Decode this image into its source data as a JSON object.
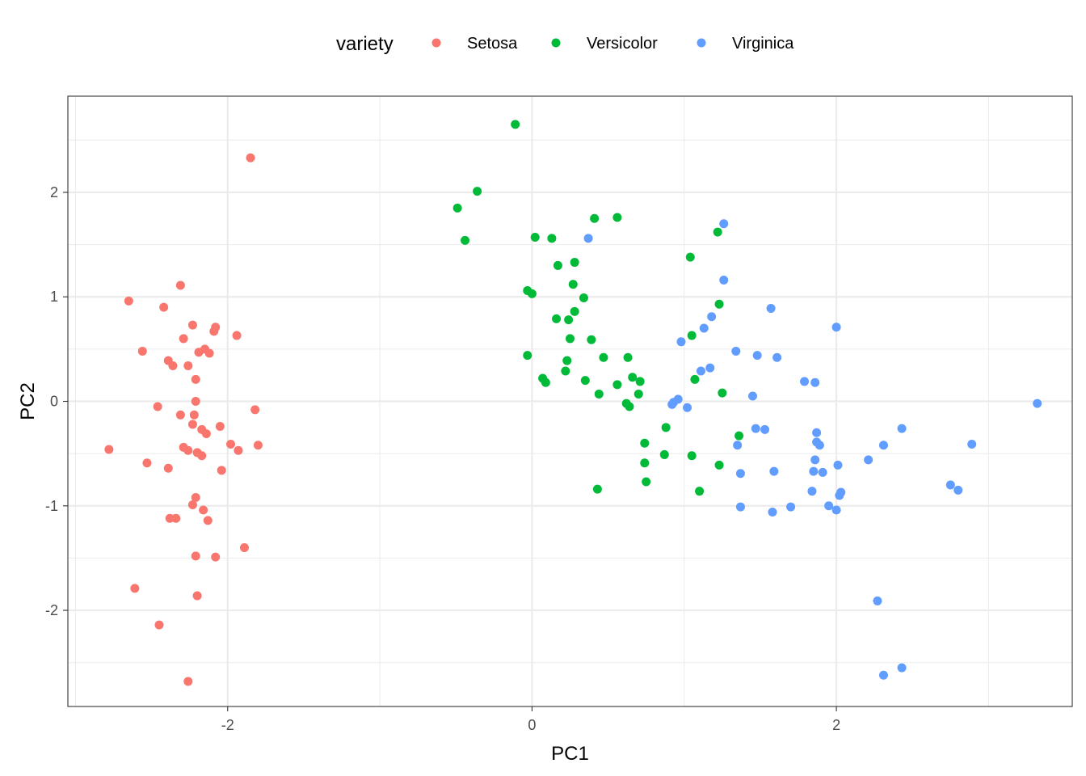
{
  "chart_data": {
    "type": "scatter",
    "xlabel": "PC1",
    "ylabel": "PC2",
    "xlim": [
      -3.05,
      3.55
    ],
    "ylim": [
      -2.92,
      2.92
    ],
    "x_ticks": [
      -2,
      0,
      2
    ],
    "y_ticks": [
      -2,
      -1,
      0,
      1,
      2
    ],
    "x_tick_labels": [
      "-2",
      "0",
      "2"
    ],
    "y_tick_labels": [
      "-2",
      "-1",
      "0",
      "1",
      "2"
    ],
    "grid": true,
    "legend": {
      "title": "variety",
      "position": "top"
    },
    "series": [
      {
        "name": "Setosa",
        "color": "#F8766D",
        "points": [
          [
            -1.85,
            2.33
          ],
          [
            -2.31,
            1.11
          ],
          [
            -2.65,
            0.96
          ],
          [
            -2.42,
            0.9
          ],
          [
            -2.23,
            0.73
          ],
          [
            -2.08,
            0.71
          ],
          [
            -2.09,
            0.67
          ],
          [
            -1.94,
            0.63
          ],
          [
            -2.29,
            0.6
          ],
          [
            -2.15,
            0.5
          ],
          [
            -2.12,
            0.46
          ],
          [
            -2.19,
            0.47
          ],
          [
            -2.56,
            0.48
          ],
          [
            -2.39,
            0.39
          ],
          [
            -2.36,
            0.34
          ],
          [
            -2.26,
            0.34
          ],
          [
            -2.21,
            0.21
          ],
          [
            -2.21,
            0.0
          ],
          [
            -2.46,
            -0.05
          ],
          [
            -1.82,
            -0.08
          ],
          [
            -2.31,
            -0.13
          ],
          [
            -2.22,
            -0.13
          ],
          [
            -2.23,
            -0.22
          ],
          [
            -2.05,
            -0.24
          ],
          [
            -2.17,
            -0.27
          ],
          [
            -2.14,
            -0.31
          ],
          [
            -1.98,
            -0.41
          ],
          [
            -1.8,
            -0.42
          ],
          [
            -2.29,
            -0.44
          ],
          [
            -2.26,
            -0.47
          ],
          [
            -1.93,
            -0.47
          ],
          [
            -2.2,
            -0.49
          ],
          [
            -2.17,
            -0.52
          ],
          [
            -2.78,
            -0.46
          ],
          [
            -2.53,
            -0.59
          ],
          [
            -2.39,
            -0.64
          ],
          [
            -2.04,
            -0.66
          ],
          [
            -2.21,
            -0.92
          ],
          [
            -2.23,
            -0.99
          ],
          [
            -2.16,
            -1.04
          ],
          [
            -2.38,
            -1.12
          ],
          [
            -2.34,
            -1.12
          ],
          [
            -2.13,
            -1.14
          ],
          [
            -1.89,
            -1.4
          ],
          [
            -2.21,
            -1.48
          ],
          [
            -2.08,
            -1.49
          ],
          [
            -2.61,
            -1.79
          ],
          [
            -2.2,
            -1.86
          ],
          [
            -2.45,
            -2.14
          ],
          [
            -2.26,
            -2.68
          ]
        ]
      },
      {
        "name": "Versicolor",
        "color": "#00BA38",
        "points": [
          [
            -0.11,
            2.65
          ],
          [
            -0.36,
            2.01
          ],
          [
            -0.49,
            1.85
          ],
          [
            -0.44,
            1.54
          ],
          [
            0.41,
            1.75
          ],
          [
            0.56,
            1.76
          ],
          [
            0.02,
            1.57
          ],
          [
            0.13,
            1.56
          ],
          [
            1.22,
            1.62
          ],
          [
            1.04,
            1.38
          ],
          [
            0.17,
            1.3
          ],
          [
            0.28,
            1.33
          ],
          [
            0.27,
            1.12
          ],
          [
            -0.03,
            1.06
          ],
          [
            0.0,
            1.03
          ],
          [
            0.34,
            0.99
          ],
          [
            1.23,
            0.93
          ],
          [
            0.28,
            0.86
          ],
          [
            0.16,
            0.79
          ],
          [
            0.24,
            0.78
          ],
          [
            1.05,
            0.63
          ],
          [
            0.25,
            0.6
          ],
          [
            0.39,
            0.59
          ],
          [
            -0.03,
            0.44
          ],
          [
            0.47,
            0.42
          ],
          [
            0.63,
            0.42
          ],
          [
            0.23,
            0.39
          ],
          [
            0.22,
            0.29
          ],
          [
            0.07,
            0.22
          ],
          [
            0.09,
            0.18
          ],
          [
            0.35,
            0.2
          ],
          [
            0.66,
            0.23
          ],
          [
            0.71,
            0.19
          ],
          [
            0.56,
            0.16
          ],
          [
            1.07,
            0.21
          ],
          [
            0.44,
            0.07
          ],
          [
            0.7,
            0.07
          ],
          [
            1.25,
            0.08
          ],
          [
            0.62,
            -0.02
          ],
          [
            1.36,
            -0.33
          ],
          [
            0.88,
            -0.25
          ],
          [
            0.74,
            -0.4
          ],
          [
            0.87,
            -0.51
          ],
          [
            1.05,
            -0.52
          ],
          [
            0.74,
            -0.59
          ],
          [
            1.23,
            -0.61
          ],
          [
            0.43,
            -0.84
          ],
          [
            0.75,
            -0.77
          ],
          [
            1.1,
            -0.86
          ],
          [
            0.64,
            -0.05
          ]
        ]
      },
      {
        "name": "Virginica",
        "color": "#619CFF",
        "points": [
          [
            1.26,
            1.7
          ],
          [
            0.37,
            1.56
          ],
          [
            1.26,
            1.16
          ],
          [
            1.57,
            0.89
          ],
          [
            2.0,
            0.71
          ],
          [
            1.18,
            0.81
          ],
          [
            1.13,
            0.7
          ],
          [
            0.98,
            0.57
          ],
          [
            1.34,
            0.48
          ],
          [
            1.48,
            0.44
          ],
          [
            1.61,
            0.42
          ],
          [
            1.17,
            0.32
          ],
          [
            1.11,
            0.29
          ],
          [
            1.79,
            0.19
          ],
          [
            1.86,
            0.18
          ],
          [
            1.45,
            0.05
          ],
          [
            0.96,
            0.02
          ],
          [
            0.93,
            -0.01
          ],
          [
            0.92,
            -0.03
          ],
          [
            1.02,
            -0.06
          ],
          [
            1.47,
            -0.26
          ],
          [
            1.53,
            -0.27
          ],
          [
            1.87,
            -0.3
          ],
          [
            1.87,
            -0.39
          ],
          [
            1.89,
            -0.42
          ],
          [
            1.35,
            -0.42
          ],
          [
            2.31,
            -0.42
          ],
          [
            2.43,
            -0.26
          ],
          [
            2.89,
            -0.41
          ],
          [
            2.21,
            -0.56
          ],
          [
            1.86,
            -0.56
          ],
          [
            2.01,
            -0.61
          ],
          [
            1.85,
            -0.67
          ],
          [
            1.91,
            -0.68
          ],
          [
            1.37,
            -0.69
          ],
          [
            1.59,
            -0.67
          ],
          [
            1.84,
            -0.86
          ],
          [
            2.03,
            -0.87
          ],
          [
            2.02,
            -0.9
          ],
          [
            1.95,
            -1.0
          ],
          [
            2.0,
            -1.04
          ],
          [
            1.37,
            -1.01
          ],
          [
            1.7,
            -1.01
          ],
          [
            1.58,
            -1.06
          ],
          [
            2.75,
            -0.8
          ],
          [
            2.8,
            -0.85
          ],
          [
            2.27,
            -1.91
          ],
          [
            2.31,
            -2.62
          ],
          [
            2.43,
            -2.55
          ],
          [
            3.32,
            -0.02
          ]
        ]
      }
    ]
  }
}
